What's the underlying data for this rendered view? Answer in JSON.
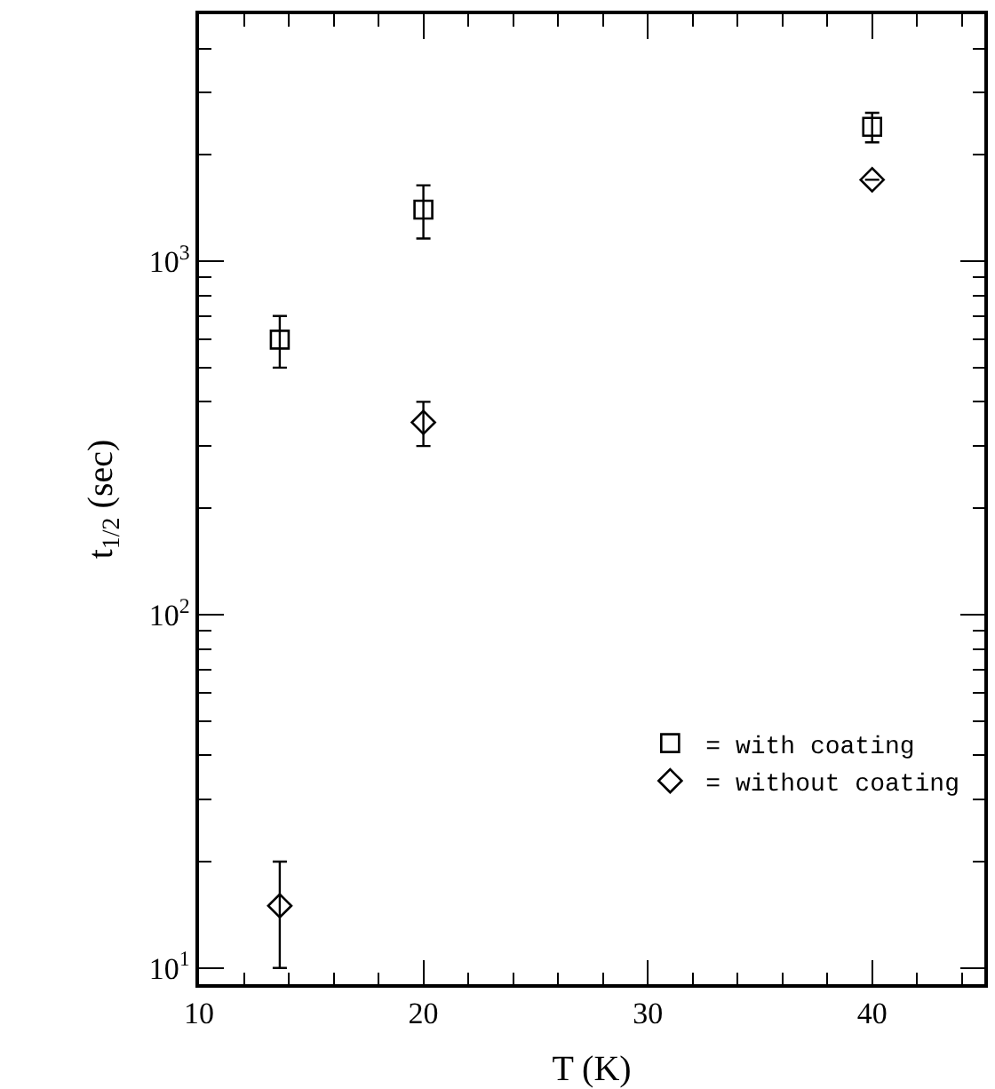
{
  "chart_data": {
    "type": "scatter",
    "xlabel": "T (K)",
    "ylabel": "t$_{1/2}$ (sec)",
    "log": "y",
    "xlim": [
      10,
      45
    ],
    "ylim": [
      9,
      5000
    ],
    "xticks": [
      10,
      {
        "value": 12,
        "label": null
      },
      {
        "value": 14,
        "label": null
      },
      {
        "value": 16,
        "label": null
      },
      {
        "value": 18,
        "label": null
      },
      20,
      {
        "value": 22,
        "label": null
      },
      {
        "value": 24,
        "label": null
      },
      {
        "value": 26,
        "label": null
      },
      {
        "value": 28,
        "label": null
      },
      30,
      {
        "value": 32,
        "label": null
      },
      {
        "value": 34,
        "label": null
      },
      {
        "value": 36,
        "label": null
      },
      {
        "value": 38,
        "label": null
      },
      40,
      {
        "value": 42,
        "label": null
      },
      {
        "value": 44,
        "label": null
      }
    ],
    "yticks": [
      {
        "value": 10,
        "label": "10$^{1}$"
      },
      {
        "value": 20,
        "label": null
      },
      {
        "value": 30,
        "label": null
      },
      {
        "value": 40,
        "label": null
      },
      {
        "value": 50,
        "label": null
      },
      {
        "value": 60,
        "label": null
      },
      {
        "value": 70,
        "label": null
      },
      {
        "value": 80,
        "label": null
      },
      {
        "value": 90,
        "label": null
      },
      {
        "value": 100,
        "label": "10$^{2}$"
      },
      {
        "value": 200,
        "label": null
      },
      {
        "value": 300,
        "label": null
      },
      {
        "value": 400,
        "label": null
      },
      {
        "value": 500,
        "label": null
      },
      {
        "value": 600,
        "label": null
      },
      {
        "value": 700,
        "label": null
      },
      {
        "value": 800,
        "label": null
      },
      {
        "value": 900,
        "label": null
      },
      {
        "value": 1000,
        "label": "10$^{3}$"
      },
      {
        "value": 2000,
        "label": null
      },
      {
        "value": 3000,
        "label": null
      },
      {
        "value": 4000,
        "label": null
      }
    ],
    "legend": "bottom right",
    "series": [
      {
        "name": "= with coating",
        "color": "#000000",
        "marker": "square",
        "x": [
          13.6,
          20,
          40
        ],
        "values": [
          600,
          1400,
          2400
        ],
        "errors": [
          100,
          240,
          230
        ]
      },
      {
        "name": "= without coating",
        "color": "#000000",
        "marker": "diamond",
        "x": [
          13.6,
          20,
          40
        ],
        "values": [
          15,
          350,
          1700
        ],
        "errors": [
          5,
          50,
          null
        ]
      }
    ]
  }
}
